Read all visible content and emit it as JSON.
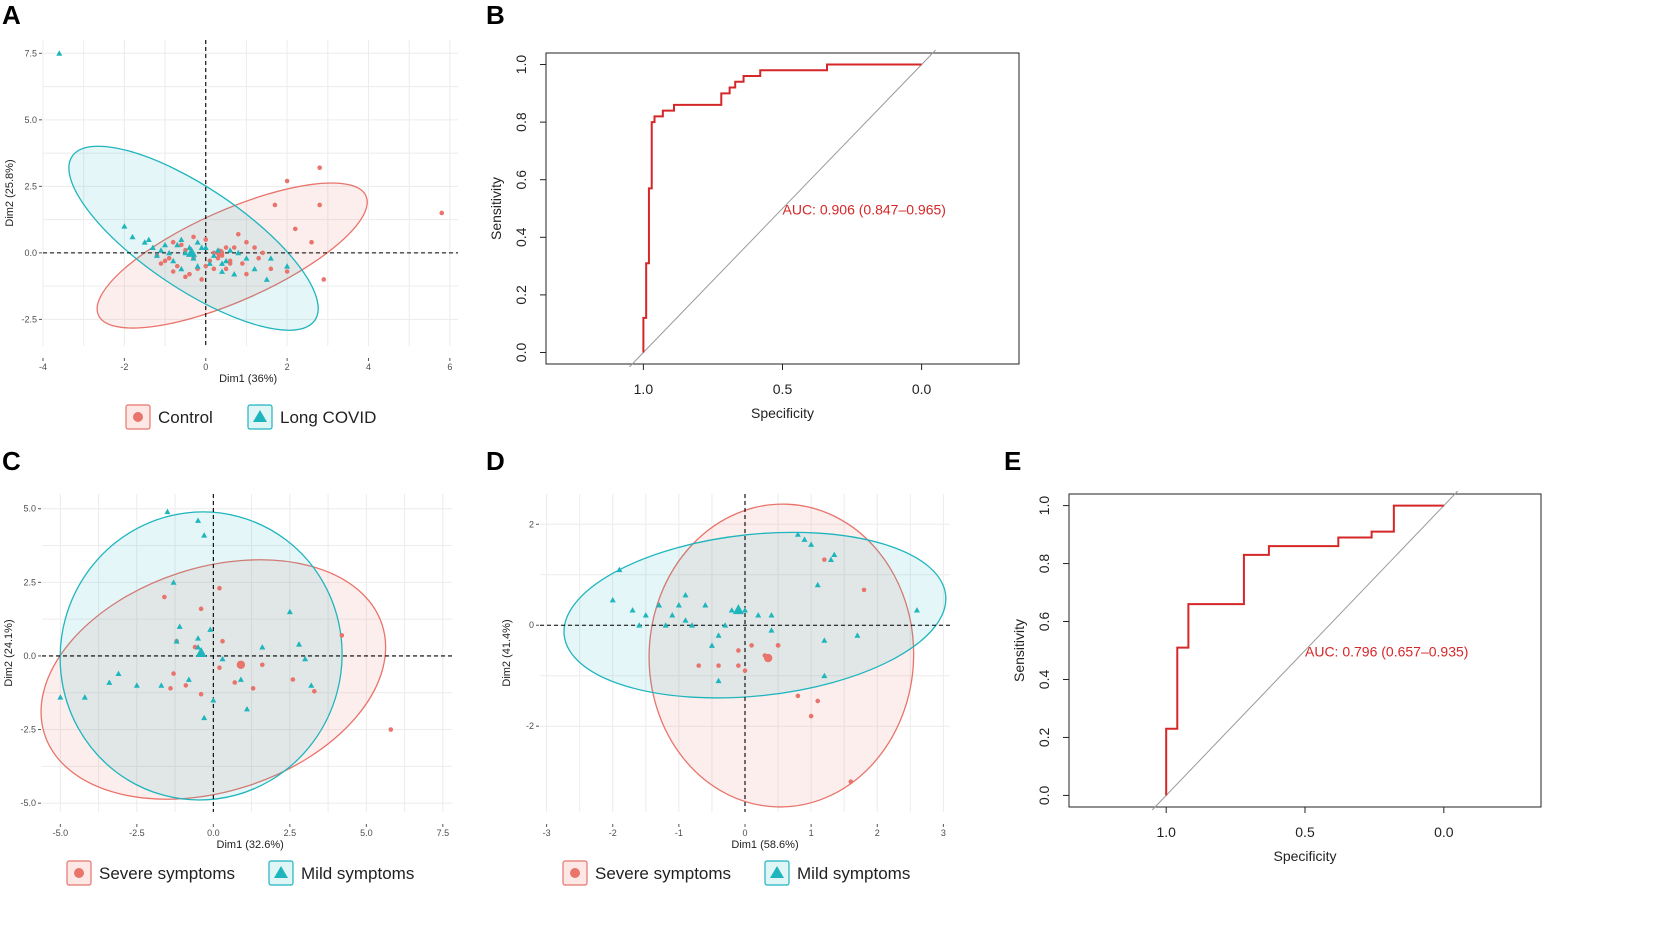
{
  "colors": {
    "control": "#e8746c",
    "long_covid": "#1fb5bd",
    "roc": "#d62728",
    "diagonal": "#9a9a9a",
    "grid": "#ececec"
  },
  "legend_ab": {
    "control": "Control",
    "long_covid": "Long COVID"
  },
  "legend_cd": {
    "severe": "Severe symptoms",
    "mild": "Mild symptoms"
  },
  "chart_data": [
    {
      "id": "A",
      "type": "scatter",
      "panel_label": "A",
      "title": "",
      "xlabel": "Dim1 (36%)",
      "ylabel": "Dim2 (25.8%)",
      "xlim": [
        -4,
        6.2
      ],
      "ylim": [
        -3.5,
        8.0
      ],
      "xticks": [
        -4,
        -2,
        0,
        2,
        4,
        6
      ],
      "xtick_labels": [
        "-4",
        "-2",
        "0",
        "2",
        "4",
        "6"
      ],
      "yticks": [
        -2.5,
        0,
        2.5,
        5,
        7.5
      ],
      "ytick_labels": [
        "-2.5",
        "0.0",
        "2.5",
        "5.0",
        "7.5"
      ],
      "series": [
        {
          "name": "Control",
          "marker": "circle",
          "x": [
            0.3,
            0.5,
            0.8,
            1.2,
            1.7,
            2.0,
            2.2,
            2.8,
            2.9,
            2.8,
            5.8,
            2.6,
            0.2,
            0.6,
            1.0,
            1.4,
            0.0,
            -0.3,
            -0.6,
            -0.9,
            -1.1,
            -0.8,
            -0.5,
            -0.2,
            0.1,
            0.4,
            0.7,
            -0.4,
            -0.7,
            -1.0,
            -1.2,
            0.2,
            0.5,
            0.9,
            1.3,
            -0.1,
            -0.3,
            -0.5,
            -0.8,
            1.0,
            0.0,
            0.6,
            2.0,
            1.6
          ],
          "y": [
            -0.2,
            0.2,
            0.7,
            0.2,
            1.8,
            2.7,
            0.9,
            1.8,
            -1.0,
            3.2,
            1.5,
            0.4,
            -0.6,
            -0.4,
            -0.8,
            0.0,
            0.5,
            0.6,
            0.3,
            -0.2,
            -0.4,
            -0.7,
            -0.9,
            -0.6,
            -0.3,
            -0.1,
            0.2,
            -0.8,
            -0.5,
            -0.3,
            -0.1,
            0.0,
            -0.6,
            -0.4,
            -0.2,
            -1.0,
            -0.2,
            0.1,
            0.4,
            0.4,
            -0.5,
            -0.3,
            -0.7,
            -0.6
          ],
          "center": [
            0.35,
            0.0
          ]
        },
        {
          "name": "Long COVID",
          "marker": "triangle",
          "x": [
            -3.6,
            -2.0,
            -1.8,
            -1.5,
            -1.3,
            -1.1,
            -0.9,
            -0.7,
            -0.5,
            -0.3,
            -0.1,
            0.1,
            0.3,
            0.5,
            0.7,
            1.2,
            1.5,
            1.6,
            2.0,
            -1.2,
            -0.8,
            -0.6,
            -0.4,
            -0.2,
            0.2,
            0.4,
            0.8,
            -1.0,
            -1.4,
            0.0,
            -0.6,
            0.6,
            1.0,
            -0.2,
            0.4
          ],
          "y": [
            7.5,
            1.0,
            0.6,
            0.4,
            0.2,
            0.1,
            0.0,
            0.3,
            0.0,
            -0.2,
            0.2,
            -0.4,
            0.1,
            -0.3,
            -0.8,
            -0.6,
            -1.0,
            -0.2,
            -0.5,
            -0.1,
            -0.3,
            0.5,
            0.2,
            -0.5,
            -0.1,
            -0.4,
            0.0,
            0.3,
            0.5,
            0.2,
            -0.6,
            0.1,
            -0.2,
            0.4,
            -0.7
          ],
          "center": [
            -0.35,
            0.0
          ]
        }
      ],
      "ellipses": [
        {
          "series": "Control",
          "center": [
            0.65,
            -0.1
          ],
          "semi_axes": [
            3.6,
            1.7
          ],
          "rotation_deg": -24
        },
        {
          "series": "Long COVID",
          "center": [
            -0.3,
            0.55
          ],
          "semi_axes": [
            3.6,
            1.9
          ],
          "rotation_deg": 34
        }
      ]
    },
    {
      "id": "B",
      "type": "line",
      "panel_label": "B",
      "title": "",
      "xlabel": "Specificity",
      "ylabel": "Sensitivity",
      "xlim": [
        1.35,
        -0.35
      ],
      "ylim": [
        -0.04,
        1.04
      ],
      "xticks": [
        1.0,
        0.5,
        0.0
      ],
      "xtick_labels": [
        "1.0",
        "0.5",
        "0.0"
      ],
      "yticks": [
        0.0,
        0.2,
        0.4,
        0.6,
        0.8,
        1.0
      ],
      "ytick_labels": [
        "0.0",
        "0.2",
        "0.4",
        "0.6",
        "0.8",
        "1.0"
      ],
      "annotation": "AUC: 0.906 (0.847–0.965)",
      "annotation_pos": [
        0.5,
        0.48
      ],
      "series": [
        {
          "name": "ROC",
          "specificity": [
            1.0,
            1.0,
            0.99,
            0.99,
            0.98,
            0.98,
            0.97,
            0.97,
            0.96,
            0.96,
            0.95,
            0.95,
            0.93,
            0.93,
            0.89,
            0.89,
            0.86,
            0.86,
            0.82,
            0.82,
            0.72,
            0.72,
            0.69,
            0.69,
            0.67,
            0.67,
            0.64,
            0.64,
            0.58,
            0.58,
            0.47,
            0.47,
            0.34,
            0.34,
            0.0
          ],
          "sensitivity": [
            0.0,
            0.12,
            0.12,
            0.31,
            0.31,
            0.57,
            0.57,
            0.8,
            0.8,
            0.82,
            0.82,
            0.82,
            0.82,
            0.84,
            0.84,
            0.86,
            0.86,
            0.86,
            0.86,
            0.86,
            0.86,
            0.9,
            0.9,
            0.92,
            0.92,
            0.94,
            0.94,
            0.96,
            0.96,
            0.98,
            0.98,
            0.98,
            0.98,
            1.0,
            1.0
          ]
        }
      ]
    },
    {
      "id": "C",
      "type": "scatter",
      "panel_label": "C",
      "title": "",
      "xlabel": "Dim1 (32.6%)",
      "ylabel": "Dim2 (24.1%)",
      "xlim": [
        -5.6,
        7.8
      ],
      "ylim": [
        -5.3,
        5.5
      ],
      "xticks": [
        -5.0,
        -2.5,
        0.0,
        2.5,
        5.0,
        7.5
      ],
      "xtick_labels": [
        "-5.0",
        "-2.5",
        "0.0",
        "2.5",
        "5.0",
        "7.5"
      ],
      "yticks": [
        -5.0,
        -2.5,
        0.0,
        2.5,
        5.0
      ],
      "ytick_labels": [
        "-5.0",
        "-2.5",
        "0.0",
        "2.5",
        "5.0"
      ],
      "series": [
        {
          "name": "Severe symptoms",
          "marker": "circle",
          "x": [
            -1.6,
            -1.2,
            -0.4,
            0.2,
            0.7,
            1.3,
            1.6,
            2.6,
            3.3,
            4.2,
            5.8,
            -1.3,
            -0.6,
            -0.4,
            -0.9,
            0.2,
            -1.4,
            0.3
          ],
          "y": [
            2.0,
            0.5,
            1.6,
            2.3,
            -0.9,
            -1.1,
            -0.3,
            -0.8,
            -1.2,
            0.7,
            -2.5,
            -0.6,
            0.3,
            -1.3,
            -1.0,
            -0.4,
            -1.1,
            0.5
          ],
          "center": [
            0.9,
            -0.3
          ]
        },
        {
          "name": "Mild symptoms",
          "marker": "triangle",
          "x": [
            -5.0,
            -4.2,
            -3.4,
            -2.5,
            -1.5,
            -1.1,
            -0.5,
            -0.3,
            -1.3,
            -0.1,
            0.9,
            1.6,
            2.5,
            3.0,
            3.2,
            0.0,
            -0.5,
            0.3,
            1.1,
            -1.7,
            -1.2,
            -0.8,
            -0.3,
            2.8,
            -3.1,
            -0.5
          ],
          "y": [
            -1.4,
            -1.4,
            -0.9,
            -1.0,
            4.9,
            1.0,
            4.6,
            4.1,
            2.5,
            0.9,
            -0.8,
            0.3,
            1.5,
            -0.1,
            -1.0,
            -1.5,
            0.3,
            -0.1,
            -1.8,
            -1.0,
            0.5,
            -0.8,
            -2.1,
            0.4,
            -0.6,
            0.6
          ],
          "center": [
            -0.4,
            0.1
          ]
        }
      ],
      "ellipses": [
        {
          "series": "Severe symptoms",
          "center": [
            0.0,
            -0.8
          ],
          "semi_axes": [
            5.8,
            3.8
          ],
          "rotation_deg": -18
        },
        {
          "series": "Mild symptoms",
          "center": [
            -0.4,
            0.0
          ],
          "semi_axes": [
            4.6,
            4.9
          ],
          "rotation_deg": 15
        }
      ]
    },
    {
      "id": "D",
      "type": "scatter",
      "panel_label": "D",
      "title": "",
      "xlabel": "Dim1 (58.6%)",
      "ylabel": "Dim2 (41.4%)",
      "xlim": [
        -3.1,
        3.1
      ],
      "ylim": [
        -3.7,
        2.6
      ],
      "xticks": [
        -3,
        -2,
        -1,
        0,
        1,
        2,
        3
      ],
      "xtick_labels": [
        "-3",
        "-2",
        "-1",
        "0",
        "1",
        "2",
        "3"
      ],
      "yticks": [
        -2,
        0,
        2
      ],
      "ytick_labels": [
        "-2",
        "0",
        "2"
      ],
      "series": [
        {
          "name": "Severe symptoms",
          "marker": "circle",
          "x": [
            -0.7,
            -0.4,
            -0.1,
            0.0,
            0.1,
            0.3,
            0.5,
            0.8,
            1.0,
            1.1,
            1.8,
            1.6,
            -0.1,
            0.5,
            1.2
          ],
          "y": [
            -0.8,
            -0.8,
            -0.5,
            -0.9,
            -0.4,
            -0.6,
            -0.4,
            -1.4,
            -1.8,
            -1.5,
            0.7,
            -3.1,
            -0.8,
            -0.4,
            1.3
          ],
          "center": [
            0.35,
            -0.65
          ]
        },
        {
          "name": "Mild symptoms",
          "marker": "triangle",
          "x": [
            -2.0,
            -1.9,
            -1.7,
            -1.5,
            -1.3,
            -1.2,
            -1.1,
            -1.0,
            -0.9,
            -0.8,
            -0.6,
            -0.4,
            -0.3,
            -0.2,
            0.0,
            0.2,
            0.4,
            0.8,
            0.9,
            1.0,
            1.1,
            1.3,
            1.35,
            1.2,
            1.7,
            2.6,
            -0.4,
            -0.5,
            -0.9,
            0.4,
            1.2,
            -1.6
          ],
          "y": [
            0.5,
            1.1,
            0.3,
            0.2,
            0.4,
            0.0,
            0.2,
            0.4,
            0.1,
            0.0,
            0.4,
            -0.2,
            0.0,
            0.3,
            0.3,
            0.2,
            -0.1,
            1.8,
            1.7,
            1.6,
            0.8,
            1.3,
            1.4,
            -1.0,
            -0.2,
            0.3,
            -1.1,
            -0.4,
            0.6,
            0.2,
            -0.3,
            0.0
          ],
          "center": [
            -0.1,
            0.3
          ]
        }
      ],
      "ellipses": [
        {
          "series": "Severe symptoms",
          "center": [
            0.55,
            -0.6
          ],
          "semi_axes": [
            2.0,
            3.0
          ],
          "rotation_deg": 2
        },
        {
          "series": "Mild symptoms",
          "center": [
            0.15,
            0.2
          ],
          "semi_axes": [
            2.9,
            1.6
          ],
          "rotation_deg": -6
        }
      ]
    },
    {
      "id": "E",
      "type": "line",
      "panel_label": "E",
      "title": "",
      "xlabel": "Specificity",
      "ylabel": "Sensitivity",
      "xlim": [
        1.35,
        -0.35
      ],
      "ylim": [
        -0.04,
        1.04
      ],
      "xticks": [
        1.0,
        0.5,
        0.0
      ],
      "xtick_labels": [
        "1.0",
        "0.5",
        "0.0"
      ],
      "yticks": [
        0.0,
        0.2,
        0.4,
        0.6,
        0.8,
        1.0
      ],
      "ytick_labels": [
        "0.0",
        "0.2",
        "0.4",
        "0.6",
        "0.8",
        "1.0"
      ],
      "annotation": "AUC: 0.796 (0.657–0.935)",
      "annotation_pos": [
        0.5,
        0.48
      ],
      "series": [
        {
          "name": "ROC",
          "specificity": [
            1.0,
            1.0,
            0.96,
            0.96,
            0.92,
            0.92,
            0.86,
            0.86,
            0.72,
            0.72,
            0.66,
            0.66,
            0.63,
            0.63,
            0.38,
            0.38,
            0.26,
            0.26,
            0.18,
            0.18,
            0.0
          ],
          "sensitivity": [
            0.0,
            0.23,
            0.23,
            0.51,
            0.51,
            0.66,
            0.66,
            0.66,
            0.66,
            0.83,
            0.83,
            0.83,
            0.83,
            0.86,
            0.86,
            0.89,
            0.89,
            0.91,
            0.91,
            1.0,
            1.0
          ]
        }
      ]
    }
  ]
}
